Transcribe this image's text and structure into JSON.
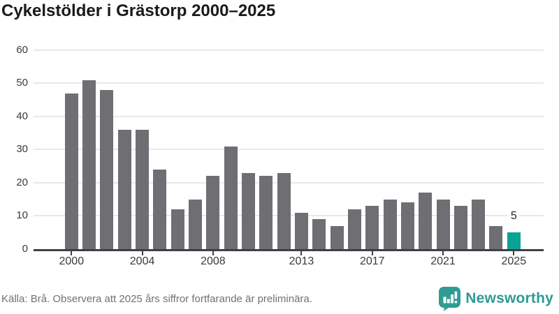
{
  "title": "Cykelstölder i Grästorp 2000–2025",
  "footer": {
    "source_text": "Källa: Brå. Observera att 2025 års siffror fortfarande är preliminära."
  },
  "branding": {
    "logo_text": "Newsworthy",
    "logo_icon": "newsworthy-speech-bubble-bar-chart-icon",
    "logo_color": "#2d9b94"
  },
  "colors": {
    "bar_default": "#6e6e73",
    "bar_highlight": "#0aa296",
    "gridline": "#e8e8e8",
    "axis": "#3f4042",
    "title_text": "#1a1a1a",
    "tick_text": "#3a3a3a",
    "footer_text": "#707174"
  },
  "chart_data": {
    "type": "bar",
    "title": "Cykelstölder i Grästorp 2000–2025",
    "x": [
      2000,
      2001,
      2002,
      2003,
      2004,
      2005,
      2006,
      2007,
      2008,
      2009,
      2010,
      2011,
      2012,
      2013,
      2014,
      2015,
      2016,
      2017,
      2018,
      2019,
      2020,
      2021,
      2022,
      2023,
      2024,
      2025
    ],
    "values": [
      47,
      51,
      48,
      36,
      36,
      24,
      12,
      15,
      22,
      31,
      23,
      22,
      23,
      11,
      9,
      7,
      12,
      13,
      15,
      14,
      17,
      15,
      13,
      15,
      7,
      5
    ],
    "highlight_index": 25,
    "data_label": {
      "year": 2025,
      "text": "5"
    },
    "x_ticks": [
      2000,
      2004,
      2008,
      2013,
      2017,
      2021,
      2025
    ],
    "y_ticks": [
      0,
      10,
      20,
      30,
      40,
      50,
      60
    ],
    "ylim": [
      0,
      60
    ],
    "xlabel": "",
    "ylabel": "",
    "grid": "horizontal",
    "legend": "none"
  }
}
